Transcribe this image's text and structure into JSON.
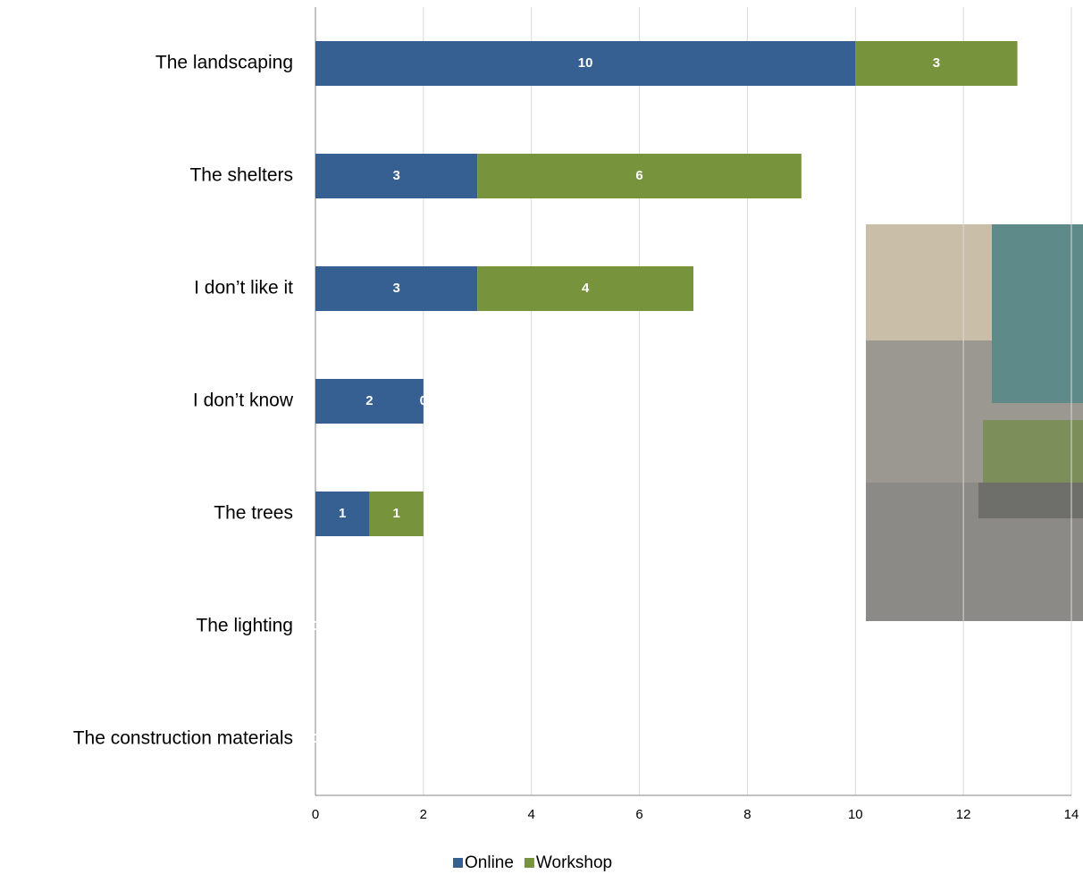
{
  "chart_data": {
    "type": "stacked-barh",
    "categories": [
      "The landscaping",
      "The shelters",
      "I don’t like it",
      "I don’t know",
      "The trees",
      "The lighting",
      "The construction materials"
    ],
    "series": [
      {
        "name": "Online",
        "color": "#376092",
        "values": [
          10,
          3,
          3,
          2,
          1,
          0,
          0
        ]
      },
      {
        "name": "Workshop",
        "color": "#77933c",
        "values": [
          3,
          6,
          4,
          0,
          1,
          0,
          0
        ]
      }
    ],
    "xlim": [
      0,
      14
    ],
    "xticks": [
      0,
      2,
      4,
      6,
      8,
      10,
      12,
      14
    ],
    "grid": true,
    "legend": "bottom"
  }
}
